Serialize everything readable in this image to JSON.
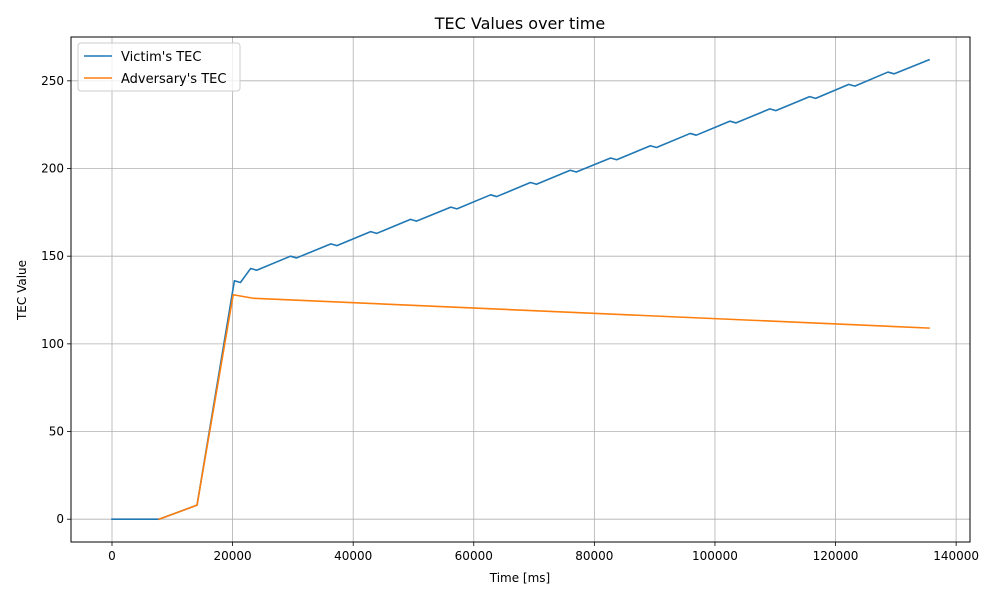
{
  "chart_data": {
    "type": "line",
    "title": "TEC Values over time",
    "xlabel": "Time [ms]",
    "ylabel": "TEC Value",
    "xlim": [
      -6800,
      142300
    ],
    "ylim": [
      -13,
      275
    ],
    "xticks": [
      0,
      20000,
      40000,
      60000,
      80000,
      100000,
      120000,
      140000
    ],
    "yticks": [
      0,
      50,
      100,
      150,
      200,
      250
    ],
    "grid": true,
    "legend": "top-left",
    "series": [
      {
        "name": "Victim's TEC",
        "color": "#1f77b4",
        "x": [
          0,
          7800,
          14100,
          20300,
          21300,
          23000,
          24000,
          29600,
          30600,
          36300,
          37300,
          42900,
          43900,
          49500,
          50500,
          56200,
          57200,
          62800,
          63800,
          69400,
          70400,
          76000,
          77000,
          82700,
          83700,
          89300,
          90300,
          95900,
          96900,
          102500,
          103500,
          109100,
          110100,
          115700,
          116700,
          122200,
          123200,
          128700,
          129700,
          135500
        ],
        "y": [
          0,
          0,
          8,
          136,
          135,
          143,
          142,
          150,
          149,
          157,
          156,
          164,
          163,
          171,
          170,
          178,
          177,
          185,
          184,
          192,
          191,
          199,
          198,
          206,
          205,
          213,
          212,
          220,
          219,
          227,
          226,
          234,
          233,
          241,
          240,
          248,
          247,
          255,
          254,
          262
        ]
      },
      {
        "name": "Adversary's TEC",
        "color": "#ff7f0e",
        "x": [
          7800,
          14100,
          20100,
          23400,
          135500
        ],
        "y": [
          0,
          8,
          128,
          126,
          109
        ]
      }
    ]
  }
}
